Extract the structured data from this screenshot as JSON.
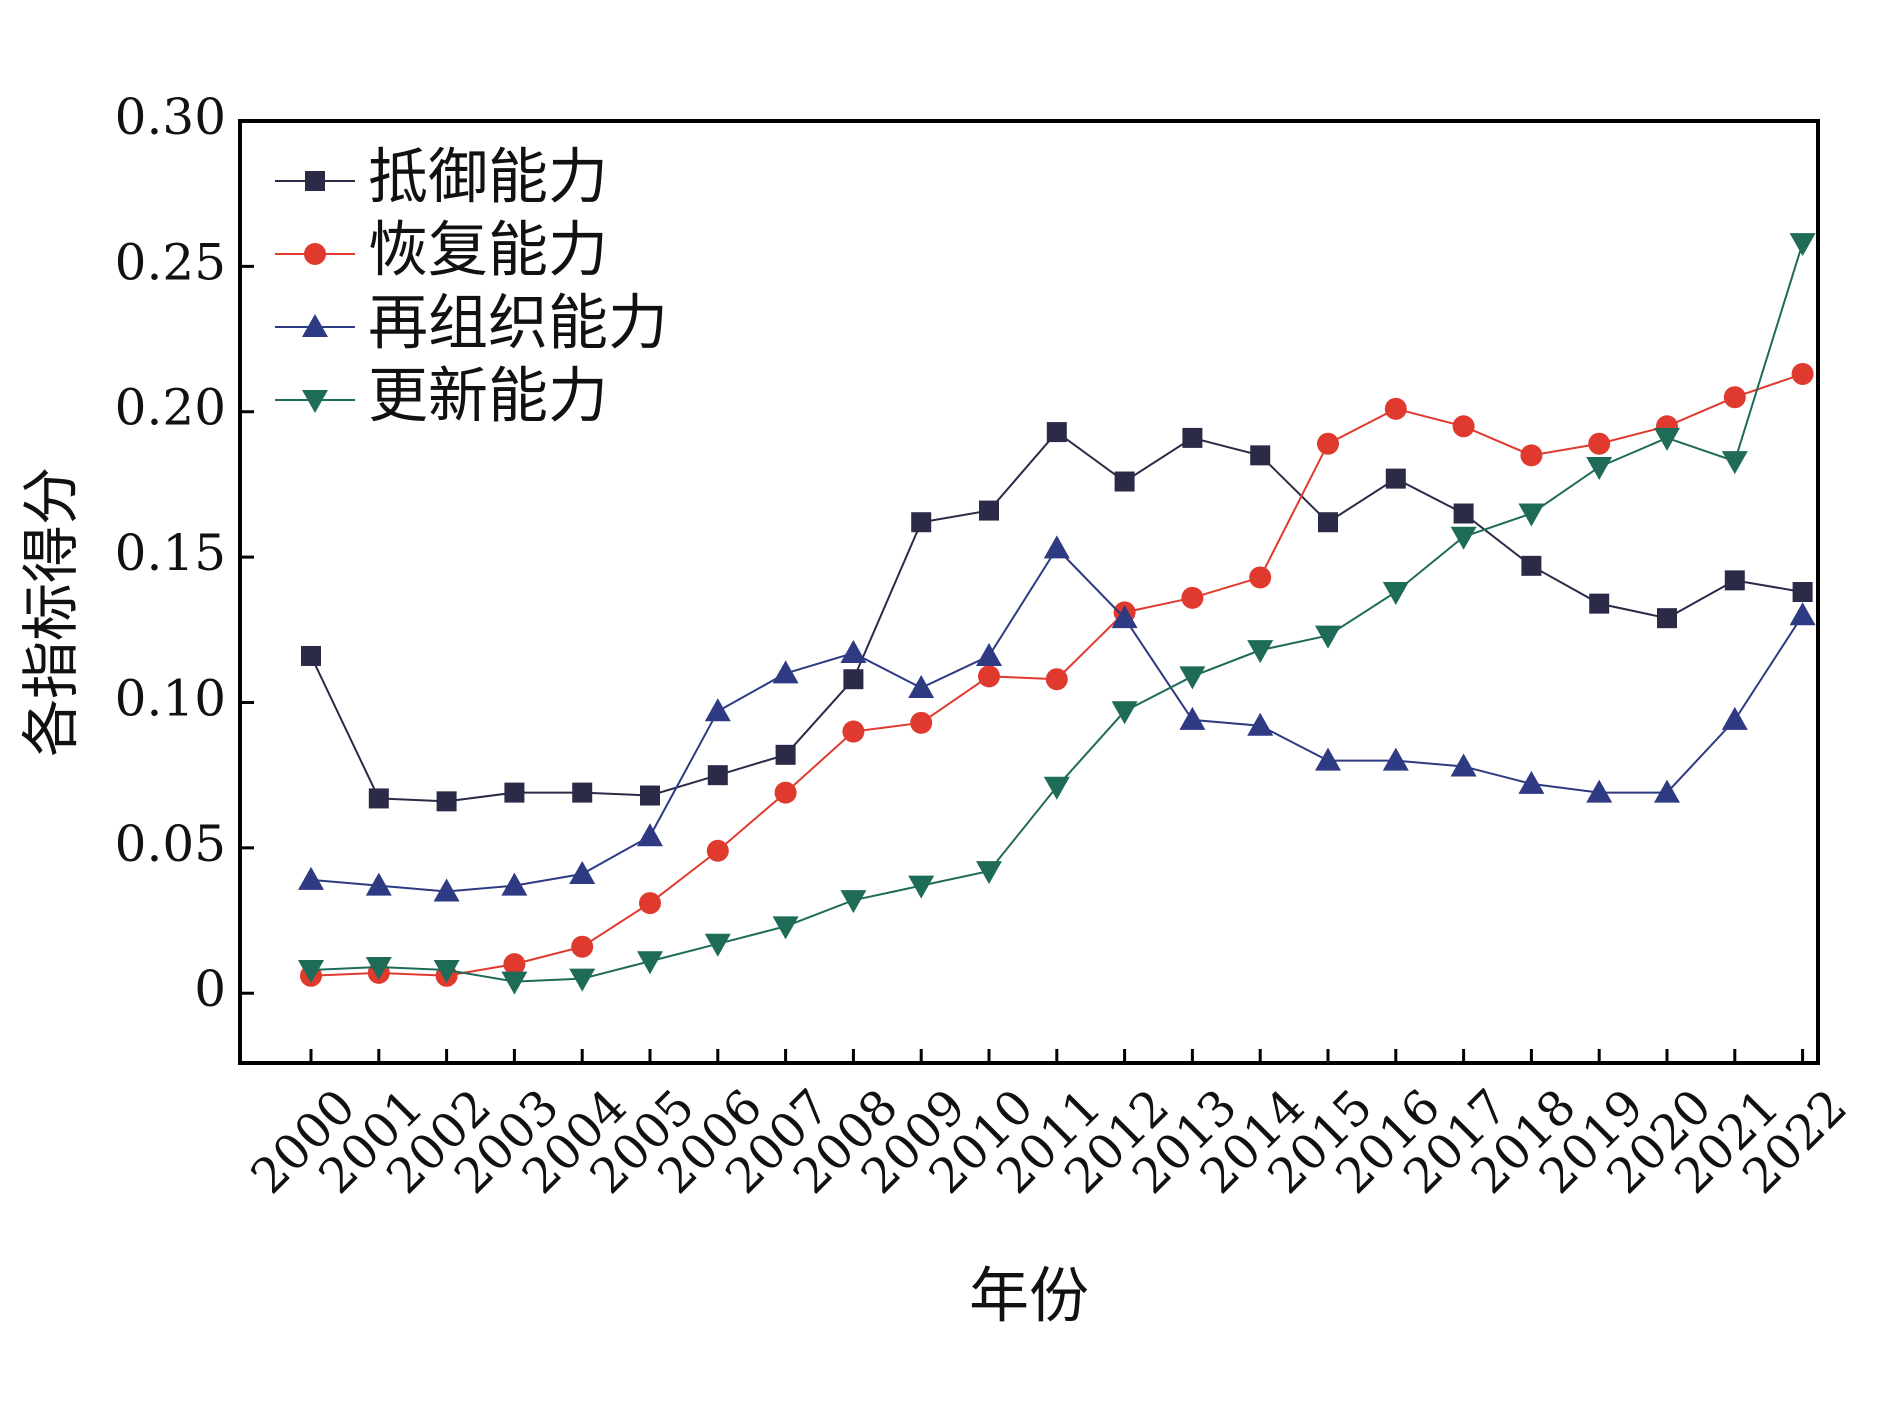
{
  "chart_data": {
    "type": "line",
    "title": "",
    "xlabel": "年份",
    "ylabel": "各指标得分",
    "ylim": [
      -0.024,
      0.3
    ],
    "yticks": [
      0,
      0.05,
      0.1,
      0.15,
      0.2,
      0.25,
      0.3
    ],
    "ytick_labels": [
      "0",
      "0.05",
      "0.10",
      "0.15",
      "0.20",
      "0.25",
      "0.30"
    ],
    "grid": false,
    "legend_position": "top-left",
    "categories": [
      "2000",
      "2001",
      "2002",
      "2003",
      "2004",
      "2005",
      "2006",
      "2007",
      "2008",
      "2009",
      "2010",
      "2011",
      "2012",
      "2013",
      "2014",
      "2015",
      "2016",
      "2017",
      "2018",
      "2019",
      "2020",
      "2021",
      "2022"
    ],
    "series": [
      {
        "name": "抵御能力",
        "marker": "square",
        "color": "#2b2b48",
        "values": [
          0.116,
          0.067,
          0.066,
          0.069,
          0.069,
          0.068,
          0.075,
          0.082,
          0.108,
          0.162,
          0.166,
          0.193,
          0.176,
          0.191,
          0.185,
          0.162,
          0.177,
          0.165,
          0.147,
          0.134,
          0.129,
          0.142,
          0.138
        ]
      },
      {
        "name": "恢复能力",
        "marker": "circle",
        "color": "#e03a2f",
        "values": [
          0.006,
          0.007,
          0.006,
          0.01,
          0.016,
          0.031,
          0.049,
          0.069,
          0.09,
          0.093,
          0.109,
          0.108,
          0.131,
          0.136,
          0.143,
          0.189,
          0.201,
          0.195,
          0.185,
          0.189,
          0.195,
          0.205,
          0.213
        ]
      },
      {
        "name": "再组织能力",
        "marker": "triangle-up",
        "color": "#2e3a82",
        "values": [
          0.039,
          0.037,
          0.035,
          0.037,
          0.041,
          0.054,
          0.097,
          0.11,
          0.117,
          0.105,
          0.116,
          0.153,
          0.129,
          0.094,
          0.092,
          0.08,
          0.08,
          0.078,
          0.072,
          0.069,
          0.069,
          0.094,
          0.13
        ]
      },
      {
        "name": "更新能力",
        "marker": "triangle-down",
        "color": "#1e6b57",
        "values": [
          0.008,
          0.009,
          0.008,
          0.004,
          0.005,
          0.011,
          0.017,
          0.023,
          0.032,
          0.037,
          0.042,
          0.071,
          0.097,
          0.109,
          0.118,
          0.123,
          0.138,
          0.157,
          0.165,
          0.181,
          0.191,
          0.183,
          0.258
        ]
      }
    ]
  }
}
